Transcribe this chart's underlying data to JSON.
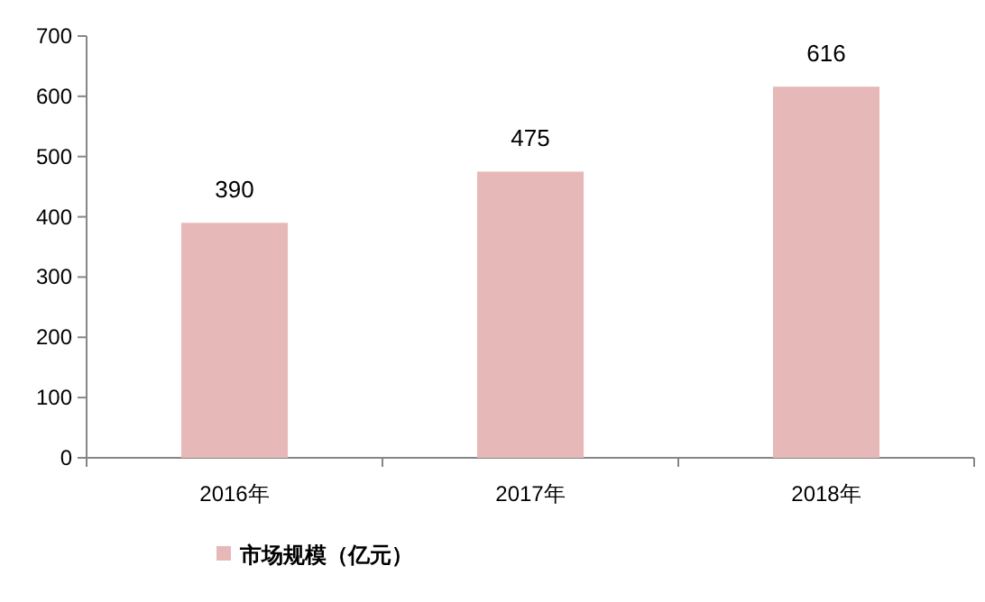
{
  "chart_data": {
    "type": "bar",
    "categories": [
      "2016年",
      "2017年",
      "2018年"
    ],
    "series": [
      {
        "name": "市场规模（亿元）",
        "color": "#e6b9b8",
        "values": [
          390,
          475,
          616
        ]
      }
    ],
    "ylim": [
      0,
      700
    ],
    "yticks": [
      0,
      100,
      200,
      300,
      400,
      500,
      600,
      700
    ],
    "data_labels": true,
    "legend": "bottom"
  }
}
